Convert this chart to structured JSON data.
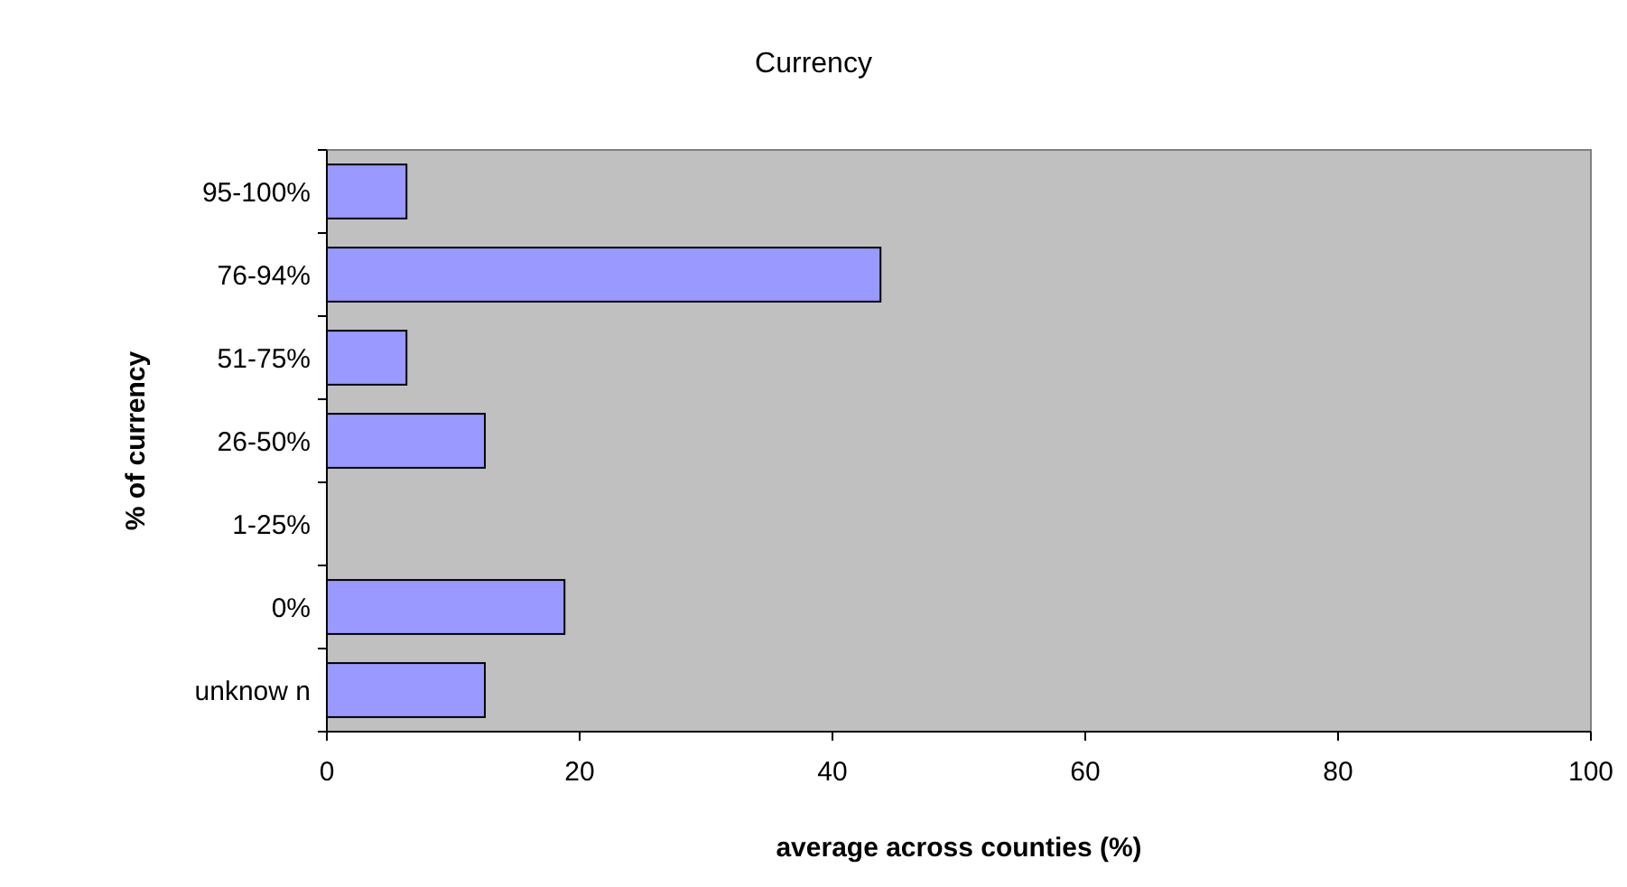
{
  "chart_data": {
    "type": "bar",
    "orientation": "horizontal",
    "title": "Currency",
    "xlabel": "average across counties (%)",
    "ylabel": "% of currency",
    "categories": [
      "95-100%",
      "76-94%",
      "51-75%",
      "26-50%",
      "1-25%",
      "0%",
      "unknow n"
    ],
    "values": [
      6.3,
      43.8,
      6.3,
      12.5,
      0,
      18.8,
      12.5
    ],
    "color": "#9999ff",
    "xlim": [
      0,
      100
    ],
    "xticks": [
      0,
      20,
      40,
      60,
      80,
      100
    ],
    "grid": false
  }
}
